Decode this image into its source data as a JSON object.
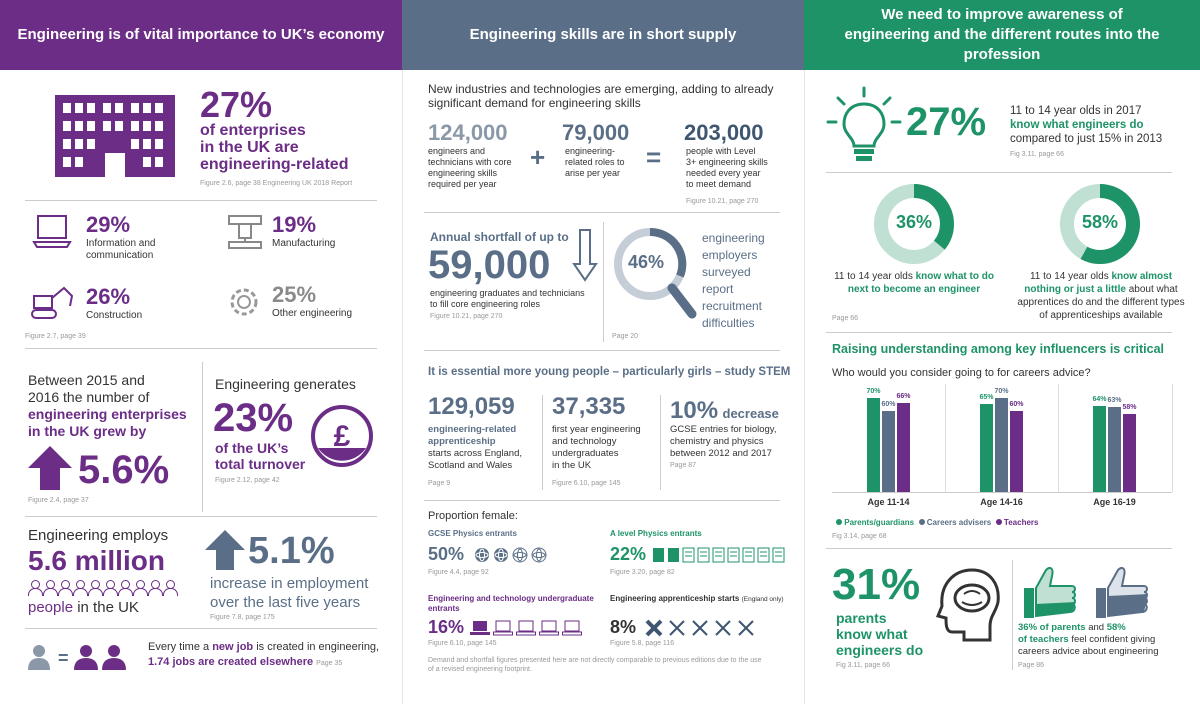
{
  "headers": {
    "col1": "Engineering is of vital importance to UK’s economy",
    "col2": "Engineering skills are in short supply",
    "col3": "We need to improve awareness of engineering and the different routes into the profession"
  },
  "colors": {
    "purple": "#6b2d86",
    "slate": "#5a6f87",
    "green": "#1e9367"
  },
  "col1": {
    "enterprises": {
      "pct": "27%",
      "line1": "of enterprises",
      "line2": "in the UK are",
      "line3": "engineering-related",
      "fig": "Figure 2.6, page 38 Engineering UK 2018 Report"
    },
    "sectors": [
      {
        "pct": "29%",
        "label1": "Information and",
        "label2": "communication",
        "icon": "laptop-icon"
      },
      {
        "pct": "19%",
        "label1": "Manufacturing",
        "label2": "",
        "icon": "machine-icon"
      },
      {
        "pct": "26%",
        "label1": "Construction",
        "label2": "",
        "icon": "excavator-icon"
      },
      {
        "pct": "25%",
        "label1": "Other engineering",
        "label2": "",
        "icon": "cog-icon"
      }
    ],
    "sectors_fig": "Figure 2.7, page 39",
    "growth": {
      "l1": "Between 2015 and",
      "l2": "2016 the number of",
      "l3": "engineering enterprises",
      "l4": "in the UK grew by",
      "pct": "5.6%",
      "fig": "Figure 2.4, page 37"
    },
    "turnover": {
      "head": "Engineering generates",
      "pct": "23%",
      "l1": "of the UK’s",
      "l2": "total turnover",
      "fig": "Figure 2.12, page 42",
      "icon": "pound-icon"
    },
    "employs": {
      "head": "Engineering employs",
      "num": "5.6 million",
      "people": "people",
      "tail": "in the UK"
    },
    "employment": {
      "pct": "5.1%",
      "l1": "increase in employment",
      "l2": "over the last five years",
      "fig": "Figure 7.8, page 175"
    },
    "jobs": {
      "t1": "Every time a ",
      "t2": "new job",
      "t3": " is created in engineering,",
      "t4": "1.74 jobs are created elsewhere",
      "page": "Page 35",
      "eq": "="
    }
  },
  "col2": {
    "intro1": "New industries and technologies are emerging, adding to already",
    "intro2": "significant demand for engineering skills",
    "demand": [
      {
        "num": "124,000",
        "l1": "engineers and",
        "l2": "technicians with core",
        "l3": "engineering skills",
        "l4": "required per year"
      },
      {
        "num": "79,000",
        "l1": "engineering-",
        "l2": "related roles to",
        "l3": "arise per year",
        "l4": ""
      },
      {
        "num": "203,000",
        "l1": "people with Level",
        "l2": "3+ engineering skills",
        "l3": "needed every year",
        "l4": "to meet demand"
      }
    ],
    "plus": "+",
    "equals": "=",
    "demand_fig": "Figure 10.21, page 270",
    "shortfall": {
      "head": "Annual shortfall of up to",
      "num": "59,000",
      "l1": "engineering graduates and technicians",
      "l2": "to fill core engineering roles",
      "fig": "Figure 10.21, page 270"
    },
    "employers": {
      "pct": "46%",
      "l1": "engineering",
      "l2": "employers",
      "l3": "surveyed",
      "l4": "report",
      "l5": "recruitment",
      "l6": "difficulties",
      "fig": "Page 20"
    },
    "stem_head": "It is essential more young people – particularly girls – study STEM",
    "stem": [
      {
        "num": "129,059",
        "b1": "engineering-related",
        "b2": "apprenticeship",
        "l1": "starts across England,",
        "l2": "Scotland and Wales",
        "fig": "Page 9"
      },
      {
        "num": "37,335",
        "l1": "first year engineering",
        "l2": "and technology",
        "l3": "undergraduates",
        "l4": "in the UK",
        "fig": "Figure 6.10, page 145"
      },
      {
        "num": "10%",
        "word": "decrease",
        "l1": "GCSE entries for biology,",
        "l2": "chemistry and physics",
        "l3": "between 2012 and 2017",
        "fig": "Page 87"
      }
    ],
    "female_head": "Proportion female:",
    "female": [
      {
        "label": "GCSE Physics entrants",
        "pct": "50%",
        "fig": "Figure 4.4, page 92",
        "icon": "atom-icon"
      },
      {
        "label": "A level Physics entrants",
        "pct": "22%",
        "fig": "Figure 3.20, page 82",
        "icon": "notepad-icon"
      },
      {
        "label": "Engineering and technology undergraduate entrants",
        "pct": "16%",
        "fig": "Figure 6.10, page 145",
        "icon": "laptop-icon"
      },
      {
        "label": "Engineering apprenticeship starts",
        "label_small": "(England only)",
        "pct": "8%",
        "fig": "Figure 5.8, page 116",
        "icon": "tools-icon"
      }
    ],
    "footnote1": "Demand and shortfall figures presented here are not directly comparable to previous editions due to the use",
    "footnote2": "of a revised engineering footprint."
  },
  "col3": {
    "know": {
      "pct": "27%",
      "l1": "11 to 14 year olds in 2017",
      "l2": "know what engineers do",
      "l3": "compared to just 15% in 2013",
      "fig": "Fig 3.11, page 66"
    },
    "donut1": {
      "pct": "36%",
      "value": 36,
      "l1a": "11 to 14 year olds ",
      "l1b": "know what to do",
      "l2": "next to become an engineer"
    },
    "donut2": {
      "pct": "58%",
      "value": 58,
      "l1a": "11 to 14 year olds ",
      "l1b": "know almost",
      "l2b": "nothing or just a little",
      "l2c": " about what",
      "l3": "apprentices do and the different types",
      "l4": "of apprenticeships available"
    },
    "donut_fig": "Page 66",
    "influencers_head": "Raising understanding among key influencers is critical",
    "question": "Who would you consider going to for careers advice?",
    "chart_fig": "Fig 3.14, page 68",
    "parents": {
      "pct": "31%",
      "l1": "parents",
      "l2": "know what",
      "l3": "engineers do",
      "fig": "Fig 3.11, page 66"
    },
    "confident": {
      "a": "36% of parents",
      "b": " and ",
      "c": "58%",
      "d": "of teachers",
      "e": " feel confident giving",
      "f": "careers advice about engineering",
      "fig": "Page 86"
    }
  },
  "chart_data": {
    "type": "bar",
    "title": "Who would you consider going to for careers advice?",
    "categories": [
      "Age 11-14",
      "Age 14-16",
      "Age 16-19"
    ],
    "series": [
      {
        "name": "Parents/guardians",
        "values": [
          70,
          65,
          64
        ],
        "color": "#1e9367"
      },
      {
        "name": "Careers advisers",
        "values": [
          60,
          70,
          63
        ],
        "color": "#5a6f87"
      },
      {
        "name": "Teachers",
        "values": [
          66,
          60,
          58
        ],
        "color": "#6b2d86"
      }
    ],
    "value_labels": [
      [
        "70%",
        "60%",
        "66%"
      ],
      [
        "65%",
        "70%",
        "60%"
      ],
      [
        "64%",
        "63%",
        "58%"
      ]
    ],
    "ylim": [
      0,
      80
    ],
    "legend": "bottom"
  }
}
